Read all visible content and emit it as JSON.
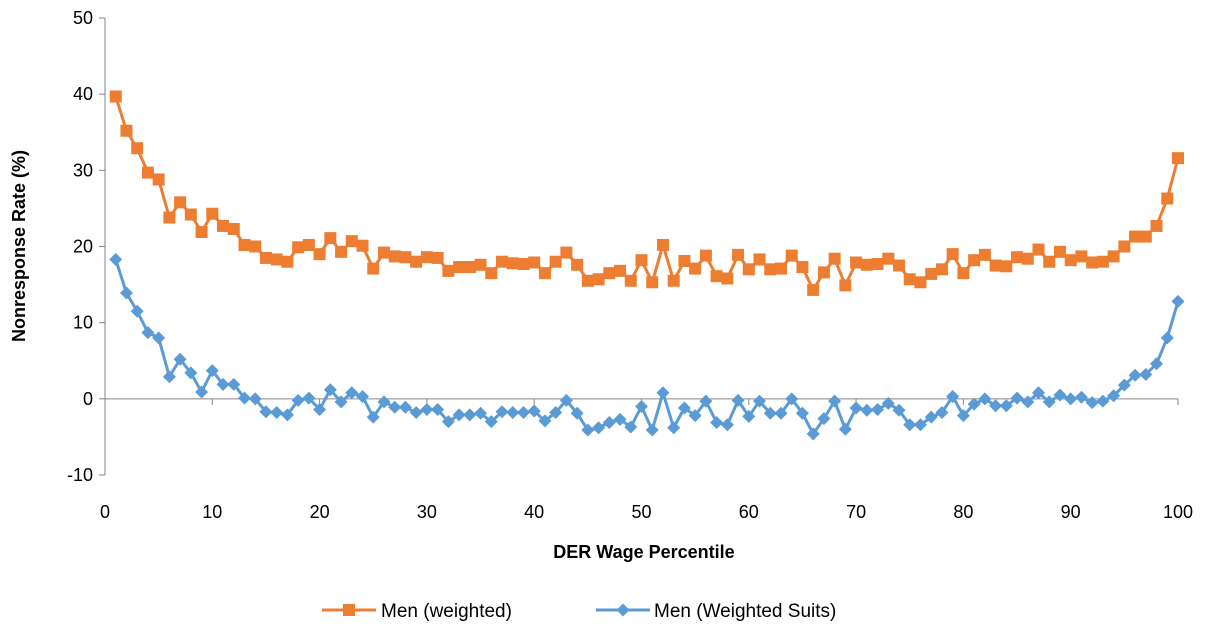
{
  "chart_data": {
    "type": "line",
    "title": "",
    "xlabel": "DER Wage Percentile",
    "ylabel": "Nonresponse Rate (%)",
    "xlim": [
      0,
      100
    ],
    "ylim": [
      -10,
      50
    ],
    "x_ticks": [
      "0",
      "10",
      "20",
      "30",
      "40",
      "50",
      "60",
      "70",
      "80",
      "90",
      "100"
    ],
    "y_ticks": [
      "-10",
      "0",
      "10",
      "20",
      "30",
      "40",
      "50"
    ],
    "grid": false,
    "legend_position": "bottom",
    "x": [
      1,
      2,
      3,
      4,
      5,
      6,
      7,
      8,
      9,
      10,
      11,
      12,
      13,
      14,
      15,
      16,
      17,
      18,
      19,
      20,
      21,
      22,
      23,
      24,
      25,
      26,
      27,
      28,
      29,
      30,
      31,
      32,
      33,
      34,
      35,
      36,
      37,
      38,
      39,
      40,
      41,
      42,
      43,
      44,
      45,
      46,
      47,
      48,
      49,
      50,
      51,
      52,
      53,
      54,
      55,
      56,
      57,
      58,
      59,
      60,
      61,
      62,
      63,
      64,
      65,
      66,
      67,
      68,
      69,
      70,
      71,
      72,
      73,
      74,
      75,
      76,
      77,
      78,
      79,
      80,
      81,
      82,
      83,
      84,
      85,
      86,
      87,
      88,
      89,
      90,
      91,
      92,
      93,
      94,
      95,
      96,
      97,
      98,
      99,
      100
    ],
    "series": [
      {
        "name": "Men (weighted)",
        "color": "#ED7D31",
        "marker": "square",
        "values": [
          39.7,
          35.2,
          32.9,
          29.7,
          28.8,
          23.8,
          25.8,
          24.2,
          21.9,
          24.3,
          22.7,
          22.3,
          20.2,
          20.0,
          18.5,
          18.3,
          18.0,
          19.9,
          20.2,
          19.0,
          21.1,
          19.3,
          20.7,
          20.1,
          17.1,
          19.2,
          18.7,
          18.6,
          18.0,
          18.6,
          18.5,
          16.8,
          17.3,
          17.3,
          17.6,
          16.5,
          18.0,
          17.8,
          17.7,
          17.9,
          16.5,
          18.0,
          19.2,
          17.6,
          15.5,
          15.7,
          16.5,
          16.8,
          15.5,
          18.2,
          15.3,
          20.2,
          15.5,
          18.1,
          17.1,
          18.8,
          16.1,
          15.8,
          18.9,
          17.0,
          18.3,
          17.0,
          17.1,
          18.8,
          17.3,
          14.3,
          16.6,
          18.4,
          14.9,
          17.9,
          17.6,
          17.7,
          18.4,
          17.5,
          15.7,
          15.3,
          16.4,
          17.0,
          19.0,
          16.5,
          18.2,
          18.9,
          17.5,
          17.4,
          18.6,
          18.4,
          19.6,
          18.0,
          19.3,
          18.2,
          18.7,
          17.9,
          18.0,
          18.7,
          20.0,
          21.3,
          21.3,
          22.7,
          26.3,
          31.6
        ]
      },
      {
        "name": "Men (Weighted Suits)",
        "color": "#5B9BD5",
        "marker": "diamond",
        "values": [
          18.3,
          13.9,
          11.5,
          8.7,
          8.0,
          2.9,
          5.2,
          3.4,
          0.9,
          3.7,
          1.9,
          1.9,
          0.1,
          0.0,
          -1.7,
          -1.8,
          -2.1,
          -0.2,
          0.1,
          -1.4,
          1.2,
          -0.4,
          0.8,
          0.3,
          -2.4,
          -0.4,
          -1.1,
          -1.1,
          -1.8,
          -1.4,
          -1.4,
          -3.0,
          -2.1,
          -2.1,
          -1.9,
          -3.0,
          -1.7,
          -1.8,
          -1.8,
          -1.6,
          -2.9,
          -1.8,
          -0.2,
          -1.9,
          -4.1,
          -3.8,
          -3.1,
          -2.7,
          -3.7,
          -1.0,
          -4.1,
          0.8,
          -3.8,
          -1.2,
          -2.2,
          -0.3,
          -3.1,
          -3.4,
          -0.2,
          -2.3,
          -0.3,
          -1.9,
          -1.9,
          0.0,
          -1.9,
          -4.6,
          -2.6,
          -0.3,
          -4.0,
          -1.2,
          -1.5,
          -1.4,
          -0.6,
          -1.5,
          -3.4,
          -3.4,
          -2.4,
          -1.8,
          0.3,
          -2.2,
          -0.7,
          0.0,
          -0.9,
          -0.9,
          0.1,
          -0.4,
          0.8,
          -0.4,
          0.5,
          0.0,
          0.2,
          -0.5,
          -0.3,
          0.4,
          1.8,
          3.1,
          3.2,
          4.6,
          8.0,
          12.8
        ]
      }
    ]
  }
}
